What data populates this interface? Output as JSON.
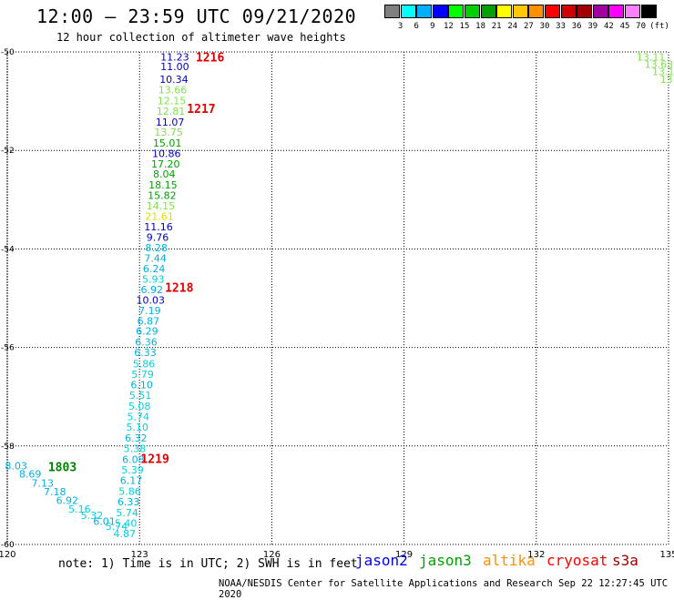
{
  "title": "12:00 – 23:59 UTC 09/21/2020",
  "subtitle": "12 hour collection of altimeter wave heights",
  "legend": {
    "colors": [
      "#808080",
      "#00ffff",
      "#00b0ff",
      "#0000ff",
      "#00ff00",
      "#00d000",
      "#00a000",
      "#ffff00",
      "#ffc800",
      "#ff9000",
      "#ff0000",
      "#d00000",
      "#a00000",
      "#a000a0",
      "#ff00ff",
      "#ff80ff",
      "#000000"
    ],
    "labels": [
      "3",
      "6",
      "9",
      "12",
      "15",
      "18",
      "21",
      "24",
      "27",
      "30",
      "33",
      "36",
      "39",
      "42",
      "45",
      "70",
      "(ft)"
    ]
  },
  "axes": {
    "x_ticks": [
      "120",
      "123",
      "126",
      "129",
      "132",
      "135"
    ],
    "y_ticks": [
      "-50",
      "-52",
      "-54",
      "-56",
      "-58",
      "-60"
    ]
  },
  "note": "note:  1) Time is in UTC;  2) SWH is in feet",
  "satellites": [
    {
      "name": "jason2",
      "color": "#0000ff"
    },
    {
      "name": "jason3",
      "color": "#00a000"
    },
    {
      "name": "altika",
      "color": "#ff9000"
    },
    {
      "name": "cryosat",
      "color": "#ff0000"
    },
    {
      "name": "s3a",
      "color": "#a00000"
    }
  ],
  "credit": "NOAA/NESDIS Center for Satellite Applications and Research    Sep 22 12:27:45 UTC 2020",
  "chart_data": {
    "type": "scatter",
    "xlim": [
      120,
      135
    ],
    "ylim": [
      -60,
      -50
    ],
    "grid": true,
    "observations": [
      {
        "lon": 123.8,
        "lat": -50.1,
        "swh": "11.23",
        "color": "#0000c0"
      },
      {
        "lon": 123.8,
        "lat": -50.3,
        "swh": "11.00",
        "color": "#0000c0"
      },
      {
        "lon": 123.78,
        "lat": -50.55,
        "swh": "10.34",
        "color": "#0000c0"
      },
      {
        "lon": 123.75,
        "lat": -50.77,
        "swh": "13.66",
        "color": "#80e050"
      },
      {
        "lon": 123.73,
        "lat": -50.99,
        "swh": "12.15",
        "color": "#80e050"
      },
      {
        "lon": 123.71,
        "lat": -51.2,
        "swh": "12.81",
        "color": "#80e050"
      },
      {
        "lon": 123.69,
        "lat": -51.42,
        "swh": "11.07",
        "color": "#0000c0"
      },
      {
        "lon": 123.66,
        "lat": -51.63,
        "swh": "13.75",
        "color": "#80e050"
      },
      {
        "lon": 123.63,
        "lat": -51.85,
        "swh": "15.01",
        "color": "#00a000"
      },
      {
        "lon": 123.61,
        "lat": -52.06,
        "swh": "10.86",
        "color": "#0000c0"
      },
      {
        "lon": 123.59,
        "lat": -52.27,
        "swh": "17.20",
        "color": "#00a000"
      },
      {
        "lon": 123.56,
        "lat": -52.48,
        "swh": "8.04",
        "color": "#00a000"
      },
      {
        "lon": 123.53,
        "lat": -52.7,
        "swh": "18.15",
        "color": "#00a000"
      },
      {
        "lon": 123.51,
        "lat": -52.91,
        "swh": "15.82",
        "color": "#00a000"
      },
      {
        "lon": 123.48,
        "lat": -53.12,
        "swh": "14.15",
        "color": "#80e050"
      },
      {
        "lon": 123.45,
        "lat": -53.34,
        "swh": "21.61",
        "color": "#e0e000"
      },
      {
        "lon": 123.43,
        "lat": -53.55,
        "swh": "11.16",
        "color": "#0000c0"
      },
      {
        "lon": 123.41,
        "lat": -53.76,
        "swh": "9.76",
        "color": "#0000c0"
      },
      {
        "lon": 123.38,
        "lat": -53.97,
        "swh": "8.28",
        "color": "#00b0e0"
      },
      {
        "lon": 123.36,
        "lat": -54.19,
        "swh": "7.44",
        "color": "#00b0e0"
      },
      {
        "lon": 123.33,
        "lat": -54.4,
        "swh": "6.24",
        "color": "#00b0e0"
      },
      {
        "lon": 123.31,
        "lat": -54.61,
        "swh": "5.93",
        "color": "#00d0e0"
      },
      {
        "lon": 123.28,
        "lat": -54.82,
        "swh": "6.92",
        "color": "#00b0e0"
      },
      {
        "lon": 123.25,
        "lat": -55.04,
        "swh": "10.03",
        "color": "#0000c0"
      },
      {
        "lon": 123.23,
        "lat": -55.25,
        "swh": "7.19",
        "color": "#00b0e0"
      },
      {
        "lon": 123.2,
        "lat": -55.46,
        "swh": "6.87",
        "color": "#00b0e0"
      },
      {
        "lon": 123.17,
        "lat": -55.67,
        "swh": "6.29",
        "color": "#00b0e0"
      },
      {
        "lon": 123.15,
        "lat": -55.89,
        "swh": "6.36",
        "color": "#00b0e0"
      },
      {
        "lon": 123.13,
        "lat": -56.1,
        "swh": "6.33",
        "color": "#00b0e0"
      },
      {
        "lon": 123.1,
        "lat": -56.33,
        "swh": "5.86",
        "color": "#00d0e0"
      },
      {
        "lon": 123.07,
        "lat": -56.54,
        "swh": "5.79",
        "color": "#00d0e0"
      },
      {
        "lon": 123.05,
        "lat": -56.76,
        "swh": "6.10",
        "color": "#00b0e0"
      },
      {
        "lon": 123.02,
        "lat": -56.97,
        "swh": "5.51",
        "color": "#00d0e0"
      },
      {
        "lon": 123.0,
        "lat": -57.19,
        "swh": "5.08",
        "color": "#00d0e0"
      },
      {
        "lon": 122.97,
        "lat": -57.4,
        "swh": "5.74",
        "color": "#00d0e0"
      },
      {
        "lon": 122.95,
        "lat": -57.62,
        "swh": "5.10",
        "color": "#00d0e0"
      },
      {
        "lon": 122.92,
        "lat": -57.84,
        "swh": "6.32",
        "color": "#00b0e0"
      },
      {
        "lon": 122.89,
        "lat": -58.05,
        "swh": "5.38",
        "color": "#00d0e0"
      },
      {
        "lon": 122.86,
        "lat": -58.27,
        "swh": "6.08",
        "color": "#00b0e0"
      },
      {
        "lon": 122.84,
        "lat": -58.48,
        "swh": "5.39",
        "color": "#00d0e0"
      },
      {
        "lon": 122.81,
        "lat": -58.7,
        "swh": "6.17",
        "color": "#00b0e0"
      },
      {
        "lon": 122.78,
        "lat": -58.92,
        "swh": "5.86",
        "color": "#00d0e0"
      },
      {
        "lon": 122.75,
        "lat": -59.13,
        "swh": "6.33",
        "color": "#00b0e0"
      },
      {
        "lon": 122.72,
        "lat": -59.35,
        "swh": "5.74",
        "color": "#00d0e0"
      },
      {
        "lon": 122.69,
        "lat": -59.57,
        "swh": "5.40",
        "color": "#00d0e0"
      },
      {
        "lon": 122.66,
        "lat": -59.78,
        "swh": "4.87",
        "color": "#00d0e0"
      },
      {
        "lon": 120.2,
        "lat": -58.4,
        "swh": "8.03",
        "color": "#00b0e0"
      },
      {
        "lon": 120.52,
        "lat": -58.57,
        "swh": "8.69",
        "color": "#00b0e0"
      },
      {
        "lon": 120.8,
        "lat": -58.75,
        "swh": "7.13",
        "color": "#00b0e0"
      },
      {
        "lon": 121.08,
        "lat": -58.93,
        "swh": "7.18",
        "color": "#00b0e0"
      },
      {
        "lon": 121.36,
        "lat": -59.1,
        "swh": "6.92",
        "color": "#00b0e0"
      },
      {
        "lon": 121.64,
        "lat": -59.28,
        "swh": "5.16",
        "color": "#00d0e0"
      },
      {
        "lon": 121.92,
        "lat": -59.41,
        "swh": "5.32",
        "color": "#00d0e0"
      },
      {
        "lon": 122.2,
        "lat": -59.53,
        "swh": "6.01",
        "color": "#00b0e0"
      },
      {
        "lon": 122.48,
        "lat": -59.63,
        "swh": "5.74",
        "color": "#00d0e0"
      },
      {
        "lon": 134.6,
        "lat": -50.1,
        "swh": "13.11",
        "color": "#80e050"
      },
      {
        "lon": 134.78,
        "lat": -50.25,
        "swh": "13.63",
        "color": "#80e050"
      },
      {
        "lon": 134.88,
        "lat": -50.4,
        "swh": "13.1",
        "color": "#80e050"
      },
      {
        "lon": 134.95,
        "lat": -50.55,
        "swh": "13",
        "color": "#80e050"
      }
    ],
    "pass_times": [
      {
        "lon": 124.6,
        "lat": -50.1,
        "label": "1216",
        "color": "#e00000"
      },
      {
        "lon": 124.4,
        "lat": -51.15,
        "label": "1217",
        "color": "#e00000"
      },
      {
        "lon": 123.9,
        "lat": -54.78,
        "label": "1218",
        "color": "#e00000"
      },
      {
        "lon": 123.35,
        "lat": -58.25,
        "label": "1219",
        "color": "#e00000"
      },
      {
        "lon": 121.25,
        "lat": -58.42,
        "label": "1803",
        "color": "#008000"
      }
    ]
  }
}
